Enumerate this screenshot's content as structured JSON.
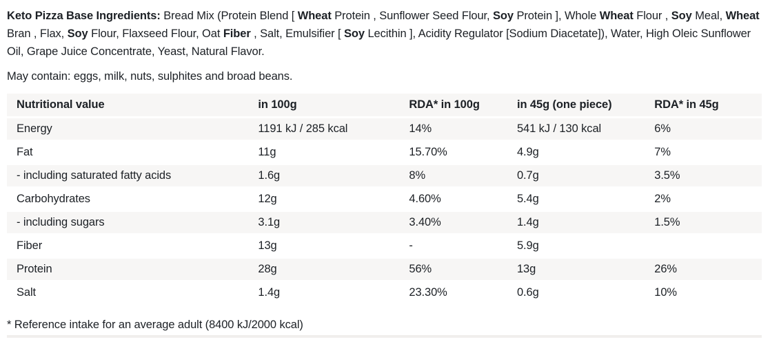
{
  "ingredients": {
    "segments": [
      {
        "text": "Keto Pizza Base Ingredients:",
        "bold": true
      },
      {
        "text": " Bread Mix (Protein Blend [ ",
        "bold": false
      },
      {
        "text": "Wheat",
        "bold": true
      },
      {
        "text": " Protein , Sunflower Seed Flour, ",
        "bold": false
      },
      {
        "text": "Soy",
        "bold": true
      },
      {
        "text": " Protein ], Whole ",
        "bold": false
      },
      {
        "text": "Wheat",
        "bold": true
      },
      {
        "text": " Flour , ",
        "bold": false
      },
      {
        "text": "Soy",
        "bold": true
      },
      {
        "text": " Meal, ",
        "bold": false
      },
      {
        "text": "Wheat",
        "bold": true
      },
      {
        "text": " Bran , Flax, ",
        "bold": false
      },
      {
        "text": "Soy",
        "bold": true
      },
      {
        "text": " Flour, Flaxseed Flour, Oat ",
        "bold": false
      },
      {
        "text": "Fiber",
        "bold": true
      },
      {
        "text": " , Salt, Emulsifier [ ",
        "bold": false
      },
      {
        "text": "Soy",
        "bold": true
      },
      {
        "text": " Lecithin ], Acidity Regulator [Sodium Diacetate]), Water, High Oleic Sunflower Oil, Grape Juice Concentrate, Yeast, Natural Flavor.",
        "bold": false
      }
    ]
  },
  "may_contain": "May contain: eggs, milk, nuts, sulphites and broad beans.",
  "table": {
    "headers": [
      "Nutritional value",
      "in 100g",
      "RDA* in 100g",
      "in 45g (one piece)",
      "RDA* in 45g"
    ],
    "rows": [
      [
        "Energy",
        "1191 kJ / 285 kcal",
        "14%",
        "541 kJ / 130 kcal",
        "6%"
      ],
      [
        "Fat",
        "11g",
        "15.70%",
        "4.9g",
        "7%"
      ],
      [
        "- including saturated fatty acids",
        "1.6g",
        "8%",
        "0.7g",
        "3.5%"
      ],
      [
        "Carbohydrates",
        "12g",
        "4.60%",
        "5.4g",
        "2%"
      ],
      [
        "- including sugars",
        "3.1g",
        "3.40%",
        "1.4g",
        "1.5%"
      ],
      [
        "Fiber",
        "13g",
        "-",
        "5.9g",
        ""
      ],
      [
        "Protein",
        "28g",
        "56%",
        "13g",
        "26%"
      ],
      [
        "Salt",
        "1.4g",
        "23.30%",
        "0.6g",
        "10%"
      ]
    ]
  },
  "footnote": "* Reference intake for an average adult (8400 kJ/2000 kcal)",
  "colors": {
    "row_stripe": "#f7f6f5",
    "text": "#1c2025"
  }
}
